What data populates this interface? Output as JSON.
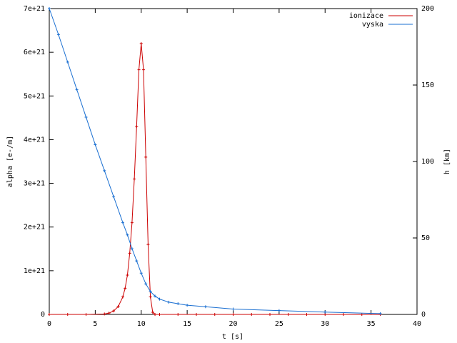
{
  "chart_data": {
    "type": "line",
    "xlabel": "t [s]",
    "ylabel": "alpha [e-/m]",
    "y2label": "h [km]",
    "xlim": [
      0,
      40
    ],
    "xticks": [
      0,
      5,
      10,
      15,
      20,
      25,
      30,
      35,
      40
    ],
    "ylim": [
      0,
      7e+21
    ],
    "yticks": [
      0,
      {
        "value": 1e+21,
        "label": "1e+21"
      },
      {
        "value": 2e+21,
        "label": "2e+21"
      },
      {
        "value": 3e+21,
        "label": "3e+21"
      },
      {
        "value": 4e+21,
        "label": "4e+21"
      },
      {
        "value": 5e+21,
        "label": "5e+21"
      },
      {
        "value": 6e+21,
        "label": "6e+21"
      },
      {
        "value": 7e+21,
        "label": "7e+21"
      }
    ],
    "y2lim": [
      0,
      200
    ],
    "y2ticks": [
      0,
      50,
      100,
      150,
      200
    ],
    "legend": "top-right",
    "series": [
      {
        "name": "ionizace",
        "color": "#cc0000",
        "x": [
          0,
          2,
          4,
          6,
          6.5,
          7,
          7.5,
          8,
          8.25,
          8.5,
          8.75,
          9,
          9.25,
          9.5,
          9.75,
          10,
          10.25,
          10.5,
          10.75,
          11,
          11.25,
          11.5,
          12,
          14,
          16,
          18,
          20,
          22,
          24,
          26,
          28,
          30,
          32,
          34,
          36
        ],
        "values": [
          0,
          0,
          0,
          1e+19,
          3e+19,
          8e+19,
          1.8e+20,
          4e+20,
          6e+20,
          9e+20,
          1.4e+21,
          2.1e+21,
          3.1e+21,
          4.3e+21,
          5.6e+21,
          6.2e+21,
          5.6e+21,
          3.6e+21,
          1.6e+21,
          4e+20,
          5e+19,
          0,
          0,
          0,
          0,
          0,
          0,
          0,
          0,
          0,
          0,
          0,
          0,
          0,
          0
        ]
      },
      {
        "name": "vyska",
        "color": "#1a6fd1",
        "x": [
          0,
          1,
          2,
          3,
          4,
          5,
          6,
          7,
          8,
          8.5,
          9,
          9.5,
          10,
          10.5,
          11,
          11.5,
          12,
          13,
          14,
          15,
          17,
          20,
          25,
          30,
          36
        ],
        "values": [
          200,
          183,
          165,
          147,
          129,
          111,
          94,
          77,
          60,
          52,
          43,
          35,
          27,
          20,
          15,
          12,
          10,
          8,
          7,
          6,
          5,
          3.5,
          2.5,
          1.5,
          0.5
        ],
        "axis": "y2"
      }
    ]
  }
}
